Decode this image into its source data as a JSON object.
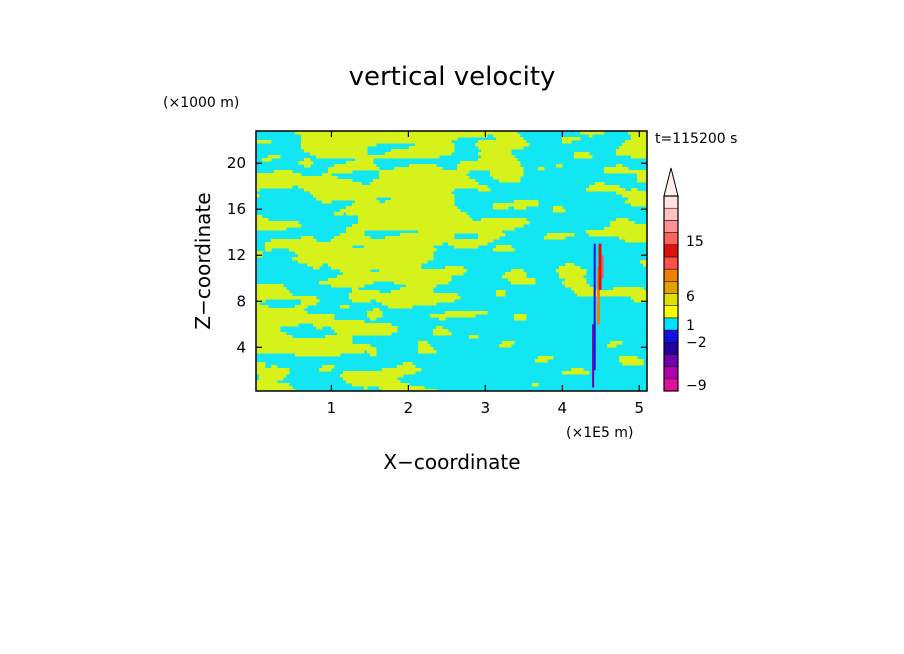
{
  "chart_data": {
    "type": "heatmap",
    "title": "vertical velocity",
    "xlabel": "X−coordinate",
    "ylabel": "Z−coordinate",
    "x_unit": "(×1E5 m)",
    "y_unit": "(×1000 m)",
    "time_label": "t=115200 s",
    "xlim": [
      0.02,
      5.1
    ],
    "ylim": [
      0.2,
      22.8
    ],
    "x_ticks": [
      1,
      2,
      3,
      4,
      5
    ],
    "y_ticks": [
      4,
      8,
      12,
      16,
      20
    ],
    "grid": false,
    "legend_position": "right",
    "colorbar": {
      "labels": [
        "15",
        "6",
        "1",
        "−2",
        "−9"
      ],
      "colors_bottom_to_top": [
        "#e0109c",
        "#b000b0",
        "#7000b0",
        "#2000a0",
        "#1010e0",
        "#00e0ff",
        "#ffff00",
        "#e0e000",
        "#e0a000",
        "#f08000",
        "#ff5050",
        "#e01010",
        "#ff6060",
        "#ff9090",
        "#ffc0c0",
        "#ffe0e0"
      ],
      "extend_top": true
    },
    "dominant_fields": {
      "positive_weak": "#d7f21b",
      "negative_weak": "#11e6f2"
    }
  }
}
